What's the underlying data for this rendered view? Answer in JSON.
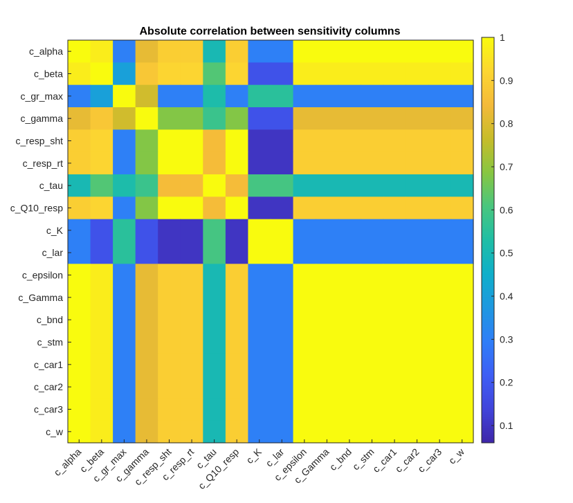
{
  "chart_data": {
    "type": "heatmap",
    "title": "Absolute correlation between sensitivity columns",
    "xlabel": "",
    "ylabel": "",
    "labels": [
      "c_alpha",
      "c_beta",
      "c_gr_max",
      "c_gamma",
      "c_resp_sht",
      "c_resp_rt",
      "c_tau",
      "c_Q10_resp",
      "c_K",
      "c_lar",
      "c_epsilon",
      "c_Gamma",
      "c_bnd",
      "c_stm",
      "c_car1",
      "c_car2",
      "c_car3",
      "c_w"
    ],
    "x_tick_labels": [
      "c_alpha",
      "c_beta",
      "c_gr_max",
      "c_gamma",
      "c_resp_sht",
      "c_resp_rt",
      "c_tau",
      "c_Q10_resp",
      "c_K",
      "c_lar",
      "c_epsilon",
      "c_Gamma",
      "c_bnd",
      "c_stm",
      "c_car1",
      "c_car2",
      "c_car3",
      "c_w"
    ],
    "y_tick_labels": [
      "c_alpha",
      "c_beta",
      "c_gr_max",
      "c_gamma",
      "c_resp_sht",
      "c_resp_rt",
      "c_tau",
      "c_Q10_resp",
      "c_K",
      "c_lar",
      "c_epsilon",
      "c_Gamma",
      "c_bnd",
      "c_stm",
      "c_car1",
      "c_car2",
      "c_car3",
      "c_w"
    ],
    "values": [
      [
        1.0,
        0.97,
        0.3,
        0.82,
        0.9,
        0.9,
        0.5,
        0.9,
        0.3,
        0.3,
        1.0,
        1.0,
        1.0,
        1.0,
        1.0,
        1.0,
        1.0,
        1.0
      ],
      [
        0.97,
        1.0,
        0.4,
        0.88,
        0.92,
        0.92,
        0.62,
        0.92,
        0.18,
        0.18,
        0.97,
        0.97,
        0.97,
        0.97,
        0.97,
        0.97,
        0.97,
        0.97
      ],
      [
        0.3,
        0.4,
        1.0,
        0.78,
        0.3,
        0.3,
        0.52,
        0.3,
        0.55,
        0.55,
        0.3,
        0.3,
        0.3,
        0.3,
        0.3,
        0.3,
        0.3,
        0.3
      ],
      [
        0.82,
        0.88,
        0.78,
        1.0,
        0.68,
        0.68,
        0.58,
        0.68,
        0.18,
        0.18,
        0.82,
        0.82,
        0.82,
        0.82,
        0.82,
        0.82,
        0.82,
        0.82
      ],
      [
        0.9,
        0.92,
        0.3,
        0.68,
        1.0,
        1.0,
        0.85,
        1.0,
        0.1,
        0.1,
        0.9,
        0.9,
        0.9,
        0.9,
        0.9,
        0.9,
        0.9,
        0.9
      ],
      [
        0.9,
        0.92,
        0.3,
        0.68,
        1.0,
        1.0,
        0.85,
        1.0,
        0.1,
        0.1,
        0.9,
        0.9,
        0.9,
        0.9,
        0.9,
        0.9,
        0.9,
        0.9
      ],
      [
        0.5,
        0.62,
        0.52,
        0.58,
        0.85,
        0.85,
        1.0,
        0.85,
        0.6,
        0.6,
        0.5,
        0.5,
        0.5,
        0.5,
        0.5,
        0.5,
        0.5,
        0.5
      ],
      [
        0.9,
        0.92,
        0.3,
        0.68,
        1.0,
        1.0,
        0.85,
        1.0,
        0.1,
        0.1,
        0.9,
        0.9,
        0.9,
        0.9,
        0.9,
        0.9,
        0.9,
        0.9
      ],
      [
        0.3,
        0.18,
        0.55,
        0.18,
        0.1,
        0.1,
        0.6,
        0.1,
        1.0,
        1.0,
        0.3,
        0.3,
        0.3,
        0.3,
        0.3,
        0.3,
        0.3,
        0.3
      ],
      [
        0.3,
        0.18,
        0.55,
        0.18,
        0.1,
        0.1,
        0.6,
        0.1,
        1.0,
        1.0,
        0.3,
        0.3,
        0.3,
        0.3,
        0.3,
        0.3,
        0.3,
        0.3
      ],
      [
        1.0,
        0.97,
        0.3,
        0.82,
        0.9,
        0.9,
        0.5,
        0.9,
        0.3,
        0.3,
        1.0,
        1.0,
        1.0,
        1.0,
        1.0,
        1.0,
        1.0,
        1.0
      ],
      [
        1.0,
        0.97,
        0.3,
        0.82,
        0.9,
        0.9,
        0.5,
        0.9,
        0.3,
        0.3,
        1.0,
        1.0,
        1.0,
        1.0,
        1.0,
        1.0,
        1.0,
        1.0
      ],
      [
        1.0,
        0.97,
        0.3,
        0.82,
        0.9,
        0.9,
        0.5,
        0.9,
        0.3,
        0.3,
        1.0,
        1.0,
        1.0,
        1.0,
        1.0,
        1.0,
        1.0,
        1.0
      ],
      [
        1.0,
        0.97,
        0.3,
        0.82,
        0.9,
        0.9,
        0.5,
        0.9,
        0.3,
        0.3,
        1.0,
        1.0,
        1.0,
        1.0,
        1.0,
        1.0,
        1.0,
        1.0
      ],
      [
        1.0,
        0.97,
        0.3,
        0.82,
        0.9,
        0.9,
        0.5,
        0.9,
        0.3,
        0.3,
        1.0,
        1.0,
        1.0,
        1.0,
        1.0,
        1.0,
        1.0,
        1.0
      ],
      [
        1.0,
        0.97,
        0.3,
        0.82,
        0.9,
        0.9,
        0.5,
        0.9,
        0.3,
        0.3,
        1.0,
        1.0,
        1.0,
        1.0,
        1.0,
        1.0,
        1.0,
        1.0
      ],
      [
        1.0,
        0.97,
        0.3,
        0.82,
        0.9,
        0.9,
        0.5,
        0.9,
        0.3,
        0.3,
        1.0,
        1.0,
        1.0,
        1.0,
        1.0,
        1.0,
        1.0,
        1.0
      ],
      [
        1.0,
        0.97,
        0.3,
        0.82,
        0.9,
        0.9,
        0.5,
        0.9,
        0.3,
        0.3,
        1.0,
        1.0,
        1.0,
        1.0,
        1.0,
        1.0,
        1.0,
        1.0
      ]
    ],
    "colorbar": {
      "ticks": [
        0.1,
        0.2,
        0.3,
        0.4,
        0.5,
        0.6,
        0.7,
        0.8,
        0.9,
        1
      ],
      "tick_labels": [
        "0.1",
        "0.2",
        "0.3",
        "0.4",
        "0.5",
        "0.6",
        "0.7",
        "0.8",
        "0.9",
        "1"
      ],
      "clim": [
        0.06,
        1.0
      ],
      "colormap": "parula",
      "orientation": "vertical",
      "placement": "right"
    },
    "grid": false,
    "legend": "none",
    "x_tick_rotation_deg": 45
  },
  "colors": {
    "parula_stops": [
      "#3E26A8",
      "#4144DB",
      "#3E5EF5",
      "#2F7EF8",
      "#1E98E0",
      "#0FAFCA",
      "#1FBEA5",
      "#49C67E",
      "#88C641",
      "#C7BC2A",
      "#F4BA3A",
      "#FCD631",
      "#F9FB0E"
    ],
    "axis": "#262626",
    "background": "#ffffff"
  }
}
